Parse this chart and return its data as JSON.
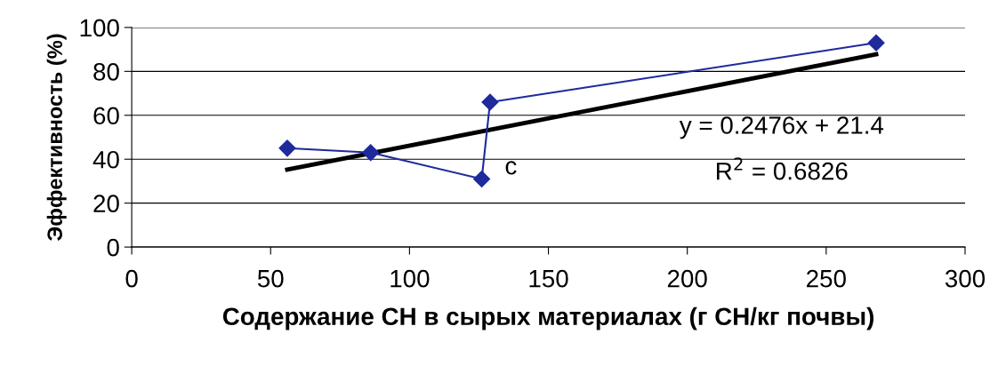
{
  "chart_data": {
    "type": "line",
    "xlabel": "Содержание СН в сырых материалах (г СН/кг почвы)",
    "ylabel": "Эффективность (%)",
    "series": [
      {
        "color": "#1f2a9c",
        "marker": "diamond",
        "x": [
          56,
          86,
          126,
          129,
          268
        ],
        "values": [
          45,
          43,
          31,
          66,
          93
        ]
      },
      {
        "color": "#000000",
        "marker": "none",
        "x": [
          56,
          268
        ],
        "values": [
          35.3,
          87.8
        ]
      }
    ],
    "annotations": [
      "c",
      "y = 0.2476x + 21.4",
      "R$^{2}$ = 0.6826"
    ],
    "xlim": [
      0,
      300
    ],
    "xticks": [
      0,
      50,
      100,
      150,
      200,
      250,
      300
    ],
    "ylim": [
      0,
      100
    ],
    "yticks": [
      0,
      20,
      40,
      60,
      80,
      100
    ],
    "grid": "y",
    "legend": false
  }
}
